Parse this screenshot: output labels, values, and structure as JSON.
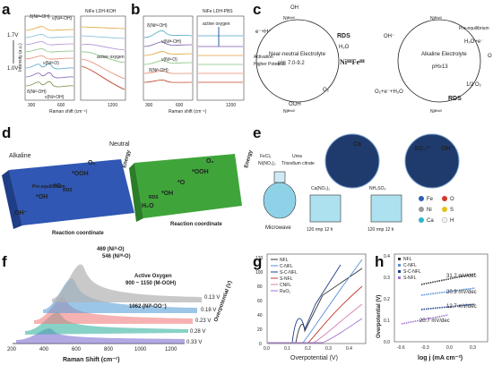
{
  "panels": {
    "a": {
      "label": "a",
      "voltages": [
        "1.7V",
        "1.0V"
      ],
      "ylabel": "Intensity (a.u.)",
      "xlabel": "Raman shift (cm⁻¹)",
      "xticks": [
        "300",
        "600",
        "1200"
      ],
      "right_title": "NiFe LDH-KOH",
      "annotations": [
        "δ(Niᴵᴵᴵ-OH)",
        "ν(Niᴵᴵᴵ-OH)",
        "ν(Niᴵᴵ-O)",
        "ν(Niᴵᴵ-OH)",
        "δ(Niᴵᴵ-OH)",
        "active oxygen"
      ]
    },
    "b": {
      "label": "b",
      "right_title": "NiFe LDH-PBS",
      "xlabel": "Raman shift (cm⁻¹)",
      "xticks": [
        "300",
        "600",
        "1200"
      ],
      "annotations": [
        "active oxygen",
        "δ(Niᴵᴵᴵ-OH)",
        "ν(Niᴵᴵᴵ-OH)",
        "ν(Niᴵᴵ-O)",
        "δ(Niᴵᴵ-OH)"
      ]
    },
    "c": {
      "label": "c",
      "center": "NiᴵᴵᴵFeᴵᴵᴵ",
      "left_title": "Near-neutral Electrolyte",
      "left_ph": "pH: 7.0-9.2",
      "right_title": "Alkaline Electrolyte",
      "right_ph": "pH≥13",
      "rds": "RDS",
      "activation": "Activation",
      "higher_potential": "Higher Potential",
      "pre_equilibrium": "Pre-equilibrium",
      "species": [
        "e⁻+H⁺",
        "H₂O",
        "O₂",
        "OH⁻",
        "H₂O+e⁻",
        "1/2 O₂",
        "O₂+e⁻+H₂O",
        "OOH",
        "OH",
        "O"
      ]
    },
    "d": {
      "label": "d",
      "left_title": "Alkaline",
      "right_title": "Neutral",
      "yaxis": "Energy",
      "xaxis": "Reaction coordinate",
      "left_steps": [
        "OH⁻",
        "*OH",
        "*O",
        "*OOH",
        "O₂"
      ],
      "right_steps": [
        "H₂O",
        "*OH",
        "*O",
        "*OOH",
        "O₂"
      ],
      "left_note": "Pre-equilibrium",
      "left_rds": "RDS",
      "right_rds": "RDS"
    },
    "e": {
      "label": "e",
      "reagents": [
        "FeCl₃",
        "Ni(NO₃)₂",
        "Urea",
        "Trisodium citrate"
      ],
      "steps": [
        "Microwave",
        "120 rmp 12 h",
        "120 rmp 12 h"
      ],
      "beakers": [
        "Ca(NO₃)₂",
        "NH₄SO₄"
      ],
      "circle_labels": [
        "Ca",
        "SO₄²⁻",
        "OH⁻"
      ],
      "legend": [
        {
          "sym": "Fe",
          "color": "#2f5fb5"
        },
        {
          "sym": "O",
          "color": "#d23a2a"
        },
        {
          "sym": "Ni",
          "color": "#9b9b9b"
        },
        {
          "sym": "S",
          "color": "#e3c21c"
        },
        {
          "sym": "Ca",
          "color": "#2bb7c9"
        },
        {
          "sym": "H",
          "color": "#f2f2f2"
        }
      ]
    },
    "f": {
      "label": "f",
      "xlabel": "Raman Shift (cm⁻¹)",
      "ylabel": "Overpotential (V)",
      "xticks": [
        "200",
        "400",
        "600",
        "800",
        "1000",
        "1200"
      ],
      "potentials": [
        "0.13 V",
        "0.18 V",
        "0.23 V",
        "0.28 V",
        "0.33 V"
      ],
      "ann1": "469 (Niᴵᴵ-O)",
      "ann2": "546 (Niᴵᴵᴵ-O)",
      "ann3": "Active Oxygen",
      "ann4": "900 ~ 1150 (M-OOH)",
      "ann5": "1062 (Niᴵᴵ-OO⁻)"
    },
    "g": {
      "label": "g",
      "xlabel": "Overpotential (V)",
      "yticks": [
        "0",
        "20",
        "40",
        "60",
        "80",
        "100",
        "120"
      ],
      "xticks": [
        "0.0",
        "0.1",
        "0.2",
        "0.3",
        "0.4"
      ],
      "legend": [
        "NFL",
        "C-NFL",
        "S-C-NFL",
        "S-NFL",
        "CNFL",
        "RuO₂"
      ]
    },
    "h": {
      "label": "h",
      "xlabel": "log j (mA cm⁻²)",
      "ylabel": "Overpotential (V)",
      "yticks": [
        "0.0",
        "0.1",
        "0.2",
        "0.3",
        "0.4"
      ],
      "xticks": [
        "-0.6",
        "-0.3",
        "0.0",
        "0.3"
      ],
      "legend": [
        "NFL",
        "C-NFL",
        "S-C-NFL",
        "S-NFL"
      ],
      "slopes": [
        "31.2 mV/dec",
        "20.9 mV/dec",
        "12.7 mV/dec",
        "20.7 mV/dec"
      ]
    }
  }
}
